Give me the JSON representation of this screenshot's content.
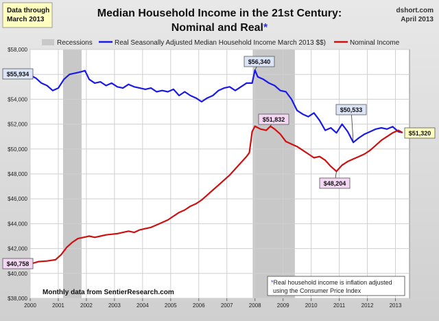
{
  "header": {
    "corner_note": [
      "Data through",
      "March 2013"
    ],
    "title_lines": [
      "Median Household Income in the 21st Century:",
      "Nominal and Real"
    ],
    "title_star": "*",
    "source": "dshort.com",
    "date": "April 2013"
  },
  "legend": {
    "recessions": "Recessions",
    "real": "Real Seasonally Adjusted Median Household Income March 2013 $$)",
    "nominal": "Nominal Income"
  },
  "notes": {
    "monthly": "Monthly data from SentierResearch.com",
    "footnote_star": "*",
    "footnote_lines": [
      "Real household  income is inflation adjusted",
      "using  the Consumer Price Index"
    ]
  },
  "colors": {
    "real": "#1a1ae6",
    "nominal": "#cc1111",
    "recession": "#c8c8c8",
    "real_callout_bg": "#dbe5f7",
    "nominal_callout_bg": "#f4d7f2",
    "latest_callout_bg": "#ffffc0",
    "title_star": "#3333cc"
  },
  "chart_data": {
    "type": "line",
    "title": "Median Household Income in the 21st Century: Nominal and Real*",
    "x_range": [
      2000.0,
      2013.5
    ],
    "ylim": [
      38000,
      58000
    ],
    "grid": true,
    "legend_position": "top",
    "x_tick_labels": [
      "2000",
      "2001",
      "2002",
      "2003",
      "2004",
      "2005",
      "2006",
      "2007",
      "2008",
      "2009",
      "2010",
      "2011",
      "2012",
      "2013"
    ],
    "y_tick_labels": [
      "$38,000",
      "$40,000",
      "$42,000",
      "$44,000",
      "$46,000",
      "$48,000",
      "$50,000",
      "$52,000",
      "$54,000",
      "$56,000",
      "$58,000"
    ],
    "recessions": [
      {
        "start": 2001.17,
        "end": 2001.83
      },
      {
        "start": 2007.92,
        "end": 2009.42
      }
    ],
    "series": [
      {
        "name": "Real Seasonally Adjusted Median Household Income March 2013 $$)",
        "x": [
          2000.0,
          2000.2,
          2000.4,
          2000.6,
          2000.8,
          2001.0,
          2001.2,
          2001.4,
          2001.6,
          2001.8,
          2001.95,
          2002.1,
          2002.3,
          2002.5,
          2002.7,
          2002.9,
          2003.1,
          2003.3,
          2003.5,
          2003.7,
          2003.9,
          2004.1,
          2004.3,
          2004.5,
          2004.7,
          2004.9,
          2005.1,
          2005.3,
          2005.5,
          2005.7,
          2005.9,
          2006.1,
          2006.3,
          2006.5,
          2006.7,
          2006.9,
          2007.1,
          2007.3,
          2007.5,
          2007.7,
          2007.9,
          2008.0,
          2008.1,
          2008.3,
          2008.5,
          2008.7,
          2008.9,
          2009.1,
          2009.3,
          2009.5,
          2009.7,
          2009.9,
          2010.1,
          2010.3,
          2010.5,
          2010.7,
          2010.9,
          2011.1,
          2011.3,
          2011.5,
          2011.7,
          2011.9,
          2012.1,
          2012.3,
          2012.5,
          2012.7,
          2012.9,
          2013.1,
          2013.25
        ],
        "values": [
          55934,
          55700,
          55300,
          55100,
          54700,
          54900,
          55600,
          56000,
          56100,
          56200,
          56300,
          55600,
          55300,
          55400,
          55100,
          55300,
          55000,
          54900,
          55200,
          55000,
          54900,
          54800,
          54900,
          54600,
          54700,
          54600,
          54800,
          54300,
          54600,
          54300,
          54100,
          53800,
          54100,
          54300,
          54700,
          54900,
          55000,
          54700,
          55000,
          55300,
          55300,
          56340,
          55800,
          55600,
          55300,
          55100,
          54700,
          54600,
          54000,
          53100,
          52800,
          52600,
          52900,
          52300,
          51500,
          51700,
          51300,
          52000,
          51400,
          50533,
          50900,
          51200,
          51400,
          51600,
          51700,
          51600,
          51800,
          51400,
          51320
        ]
      },
      {
        "name": "Nominal Income",
        "x": [
          2000.0,
          2000.3,
          2000.6,
          2000.9,
          2001.1,
          2001.3,
          2001.5,
          2001.7,
          2001.9,
          2002.1,
          2002.3,
          2002.5,
          2002.7,
          2002.9,
          2003.1,
          2003.3,
          2003.5,
          2003.7,
          2003.9,
          2004.1,
          2004.3,
          2004.5,
          2004.7,
          2004.9,
          2005.1,
          2005.3,
          2005.5,
          2005.7,
          2005.9,
          2006.1,
          2006.3,
          2006.5,
          2006.7,
          2006.9,
          2007.1,
          2007.3,
          2007.5,
          2007.7,
          2007.8,
          2007.9,
          2008.0,
          2008.2,
          2008.4,
          2008.55,
          2008.7,
          2008.9,
          2009.1,
          2009.3,
          2009.5,
          2009.7,
          2009.9,
          2010.1,
          2010.3,
          2010.5,
          2010.7,
          2010.9,
          2011.1,
          2011.3,
          2011.5,
          2011.7,
          2011.9,
          2012.1,
          2012.3,
          2012.5,
          2012.7,
          2012.9,
          2013.1,
          2013.25
        ],
        "values": [
          40758,
          40950,
          41000,
          41100,
          41500,
          42100,
          42500,
          42800,
          42900,
          43000,
          42900,
          43000,
          43100,
          43150,
          43200,
          43300,
          43400,
          43300,
          43500,
          43600,
          43700,
          43900,
          44100,
          44300,
          44600,
          44900,
          45100,
          45400,
          45600,
          45900,
          46300,
          46700,
          47100,
          47500,
          47900,
          48400,
          48900,
          49400,
          49700,
          51400,
          51832,
          51600,
          51500,
          51832,
          51600,
          51200,
          50600,
          50400,
          50200,
          49900,
          49600,
          49300,
          49400,
          49100,
          48600,
          48204,
          48700,
          49000,
          49200,
          49400,
          49600,
          49900,
          50300,
          50700,
          51000,
          51300,
          51500,
          51320
        ]
      }
    ],
    "annotations": [
      {
        "label": "$55,934",
        "x": 2000.0,
        "y": 55934,
        "series": "real"
      },
      {
        "label": "$56,340",
        "x": 2008.0,
        "y": 56340,
        "series": "real"
      },
      {
        "label": "$50,533",
        "x": 2011.5,
        "y": 50533,
        "series": "real"
      },
      {
        "label": "$51,320",
        "x": 2013.25,
        "y": 51320,
        "series": "latest"
      },
      {
        "label": "$51,832",
        "x": 2008.55,
        "y": 51832,
        "series": "nominal"
      },
      {
        "label": "$48,204",
        "x": 2010.9,
        "y": 48204,
        "series": "nominal"
      },
      {
        "label": "$40,758",
        "x": 2000.0,
        "y": 40758,
        "series": "nominal"
      }
    ]
  }
}
